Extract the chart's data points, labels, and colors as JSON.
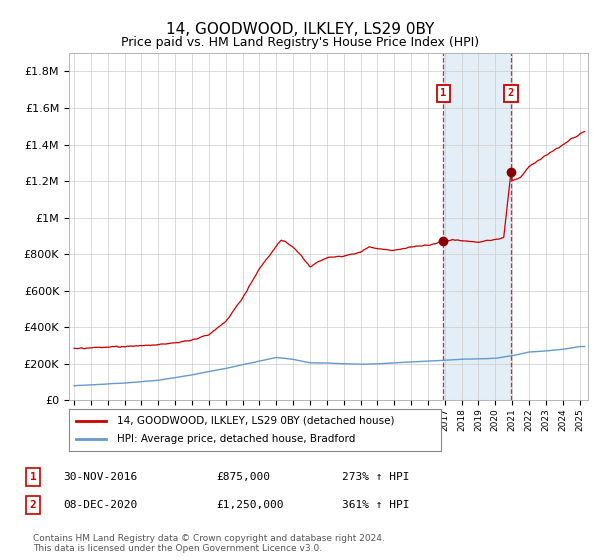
{
  "title": "14, GOODWOOD, ILKLEY, LS29 0BY",
  "subtitle": "Price paid vs. HM Land Registry's House Price Index (HPI)",
  "ylabel_ticks": [
    "£0",
    "£200K",
    "£400K",
    "£600K",
    "£800K",
    "£1M",
    "£1.2M",
    "£1.4M",
    "£1.6M",
    "£1.8M"
  ],
  "ytick_values": [
    0,
    200000,
    400000,
    600000,
    800000,
    1000000,
    1200000,
    1400000,
    1600000,
    1800000
  ],
  "ylim": [
    0,
    1900000
  ],
  "xlim_start": 1994.7,
  "xlim_end": 2025.5,
  "xtick_years": [
    1995,
    1996,
    1997,
    1998,
    1999,
    2000,
    2001,
    2002,
    2003,
    2004,
    2005,
    2006,
    2007,
    2008,
    2009,
    2010,
    2011,
    2012,
    2013,
    2014,
    2015,
    2016,
    2017,
    2018,
    2019,
    2020,
    2021,
    2022,
    2023,
    2024,
    2025
  ],
  "legend_line1": "14, GOODWOOD, ILKLEY, LS29 0BY (detached house)",
  "legend_line2": "HPI: Average price, detached house, Bradford",
  "sale1_date": "30-NOV-2016",
  "sale1_price": "£875,000",
  "sale1_hpi": "273% ↑ HPI",
  "sale1_x": 2016.92,
  "sale1_y": 875000,
  "sale2_date": "08-DEC-2020",
  "sale2_price": "£1,250,000",
  "sale2_hpi": "361% ↑ HPI",
  "sale2_x": 2020.93,
  "sale2_y": 1250000,
  "footer": "Contains HM Land Registry data © Crown copyright and database right 2024.\nThis data is licensed under the Open Government Licence v3.0.",
  "red_color": "#cc0000",
  "blue_color": "#6699cc",
  "shaded_color": "#d8e8f5",
  "grid_color": "#cccccc",
  "bg_color": "#ffffff"
}
